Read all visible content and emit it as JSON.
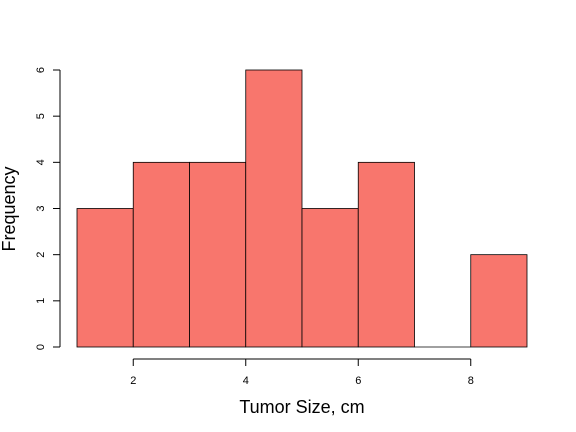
{
  "chart_data": {
    "type": "bar",
    "title": "",
    "xlabel": "Tumor Size, cm",
    "ylabel": "Frequency",
    "bins": [
      {
        "start": 1,
        "end": 2,
        "count": 3
      },
      {
        "start": 2,
        "end": 3,
        "count": 4
      },
      {
        "start": 3,
        "end": 4,
        "count": 4
      },
      {
        "start": 4,
        "end": 5,
        "count": 6
      },
      {
        "start": 5,
        "end": 6,
        "count": 3
      },
      {
        "start": 6,
        "end": 7,
        "count": 4
      },
      {
        "start": 7,
        "end": 8,
        "count": 0
      },
      {
        "start": 8,
        "end": 9,
        "count": 2
      }
    ],
    "xticks": [
      2,
      4,
      6,
      8
    ],
    "yticks": [
      0,
      1,
      2,
      3,
      4,
      5,
      6
    ],
    "xlim": [
      1,
      9
    ],
    "ylim": [
      0,
      6
    ],
    "bar_color": "#f8766d",
    "grid": false
  }
}
